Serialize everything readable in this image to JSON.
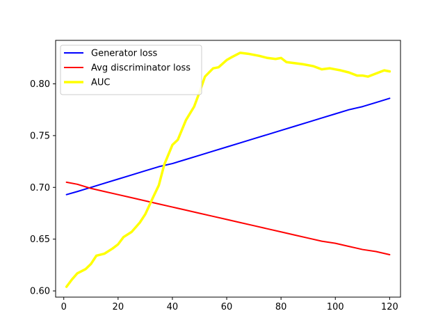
{
  "chart_data": {
    "type": "line",
    "title": "",
    "xlabel": "",
    "ylabel": "",
    "xlim": [
      -3,
      124
    ],
    "ylim": [
      0.594,
      0.842
    ],
    "xticks": [
      0,
      20,
      40,
      60,
      80,
      100,
      120
    ],
    "yticks": [
      0.6,
      0.65,
      0.7,
      0.75,
      0.8
    ],
    "xtick_labels": [
      "0",
      "20",
      "40",
      "60",
      "80",
      "100",
      "120"
    ],
    "ytick_labels": [
      "0.60",
      "0.65",
      "0.70",
      "0.75",
      "0.80"
    ],
    "grid": false,
    "legend_position": "top-left",
    "series": [
      {
        "name": "Generator loss",
        "color": "#0000ff",
        "x": [
          1,
          5,
          10,
          15,
          20,
          25,
          30,
          35,
          40,
          45,
          50,
          55,
          60,
          65,
          70,
          75,
          80,
          85,
          90,
          95,
          100,
          105,
          110,
          115,
          120
        ],
        "y": [
          0.693,
          0.696,
          0.7,
          0.704,
          0.708,
          0.712,
          0.716,
          0.72,
          0.723,
          0.727,
          0.731,
          0.735,
          0.739,
          0.743,
          0.747,
          0.751,
          0.755,
          0.759,
          0.763,
          0.767,
          0.771,
          0.775,
          0.778,
          0.782,
          0.786
        ]
      },
      {
        "name": "Avg discriminator loss",
        "color": "#ff0000",
        "x": [
          1,
          5,
          10,
          15,
          20,
          25,
          30,
          35,
          40,
          45,
          50,
          55,
          60,
          65,
          70,
          75,
          80,
          85,
          90,
          95,
          100,
          105,
          110,
          115,
          120
        ],
        "y": [
          0.705,
          0.703,
          0.699,
          0.696,
          0.693,
          0.69,
          0.687,
          0.684,
          0.681,
          0.678,
          0.675,
          0.672,
          0.669,
          0.666,
          0.663,
          0.66,
          0.657,
          0.654,
          0.651,
          0.648,
          0.646,
          0.643,
          0.64,
          0.638,
          0.635
        ]
      },
      {
        "name": "AUC",
        "color": "#ffff00",
        "x": [
          1,
          3,
          5,
          8,
          10,
          12,
          15,
          18,
          20,
          22,
          25,
          28,
          30,
          33,
          35,
          37,
          40,
          42,
          45,
          48,
          50,
          52,
          55,
          57,
          60,
          62,
          65,
          68,
          70,
          72,
          75,
          78,
          80,
          82,
          85,
          88,
          90,
          92,
          95,
          98,
          100,
          102,
          105,
          108,
          110,
          112,
          115,
          118,
          120
        ],
        "y": [
          0.604,
          0.611,
          0.617,
          0.621,
          0.626,
          0.634,
          0.636,
          0.641,
          0.645,
          0.652,
          0.657,
          0.666,
          0.674,
          0.691,
          0.702,
          0.722,
          0.741,
          0.746,
          0.765,
          0.778,
          0.792,
          0.807,
          0.815,
          0.816,
          0.823,
          0.826,
          0.83,
          0.829,
          0.828,
          0.827,
          0.825,
          0.824,
          0.825,
          0.821,
          0.82,
          0.819,
          0.818,
          0.817,
          0.814,
          0.815,
          0.814,
          0.813,
          0.811,
          0.808,
          0.808,
          0.807,
          0.81,
          0.813,
          0.812
        ]
      }
    ]
  }
}
